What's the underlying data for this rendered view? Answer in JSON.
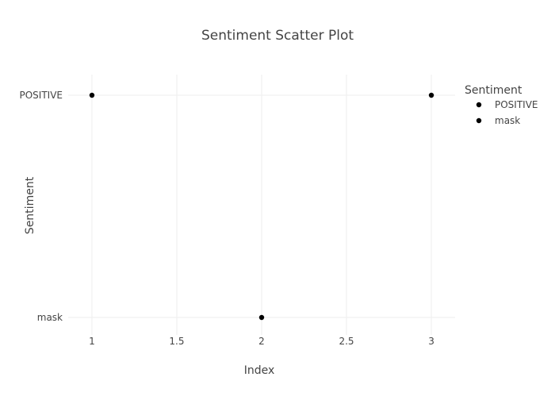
{
  "chart_data": {
    "type": "scatter",
    "title": "Sentiment Scatter Plot",
    "xlabel": "Index",
    "ylabel": "Sentiment",
    "x_ticks": [
      "1",
      "1.5",
      "2",
      "2.5",
      "3"
    ],
    "x_tick_values": [
      1,
      1.5,
      2,
      2.5,
      3
    ],
    "y_categories": [
      "mask",
      "POSITIVE"
    ],
    "xlim": [
      0.86,
      3.14
    ],
    "grid": true,
    "legend_position": "top-right",
    "legend_title": "Sentiment",
    "series": [
      {
        "name": "POSITIVE",
        "color": "#000000",
        "points": [
          {
            "x": 1,
            "y": "POSITIVE"
          },
          {
            "x": 3,
            "y": "POSITIVE"
          }
        ]
      },
      {
        "name": "mask",
        "color": "#000000",
        "points": [
          {
            "x": 2,
            "y": "mask"
          }
        ]
      }
    ]
  },
  "colors": {
    "grid": "#eeeeee",
    "text": "#444444",
    "title": "#444444",
    "marker": "#000000"
  }
}
